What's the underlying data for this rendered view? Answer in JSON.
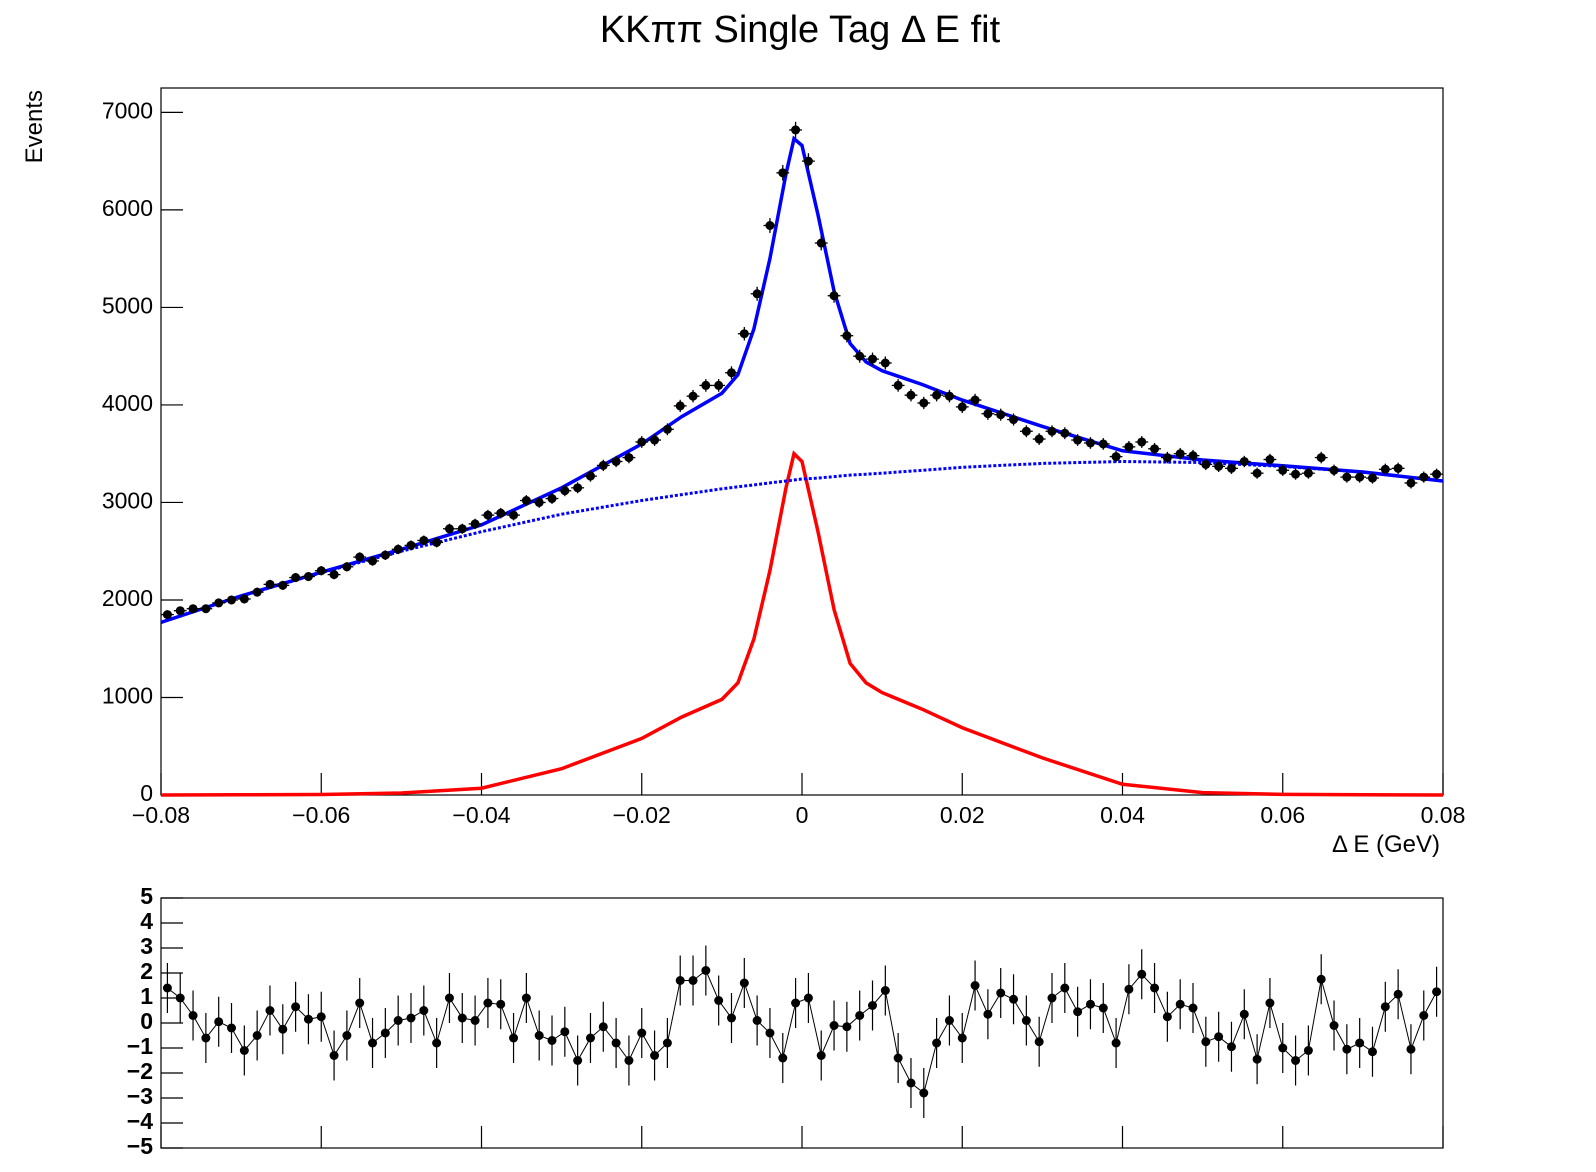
{
  "chart_data": [
    {
      "type": "scatter",
      "title": "KKππ Single Tag Δ E fit",
      "y_label": "Events",
      "x_label": "Δ E (GeV)",
      "xlim": [
        -0.08,
        0.08
      ],
      "ylim": [
        0,
        7250
      ],
      "xticks": [
        {
          "value": -0.08,
          "label": "−0.08"
        },
        {
          "value": -0.06,
          "label": "−0.06"
        },
        {
          "value": -0.04,
          "label": "−0.04"
        },
        {
          "value": -0.02,
          "label": "−0.02"
        },
        0,
        0.02,
        0.04,
        0.06,
        0.08
      ],
      "yticks": [
        0,
        1000,
        2000,
        3000,
        4000,
        5000,
        6000,
        7000
      ],
      "color": "#000000",
      "x_error": 0.0008,
      "x": [
        -0.0792,
        -0.0776,
        -0.076,
        -0.0744,
        -0.0728,
        -0.0712,
        -0.0696,
        -0.068,
        -0.0664,
        -0.0648,
        -0.0632,
        -0.0616,
        -0.06,
        -0.0584,
        -0.0568,
        -0.0552,
        -0.0536,
        -0.052,
        -0.0504,
        -0.0488,
        -0.0472,
        -0.0456,
        -0.044,
        -0.0424,
        -0.0408,
        -0.0392,
        -0.0376,
        -0.036,
        -0.0344,
        -0.0328,
        -0.0312,
        -0.0296,
        -0.028,
        -0.0264,
        -0.0248,
        -0.0232,
        -0.0216,
        -0.02,
        -0.0184,
        -0.0168,
        -0.0152,
        -0.0136,
        -0.012,
        -0.0104,
        -0.0088,
        -0.0072,
        -0.0056,
        -0.004,
        -0.0024,
        -0.0008,
        0.0008,
        0.0024,
        0.004,
        0.0056,
        0.0072,
        0.0088,
        0.0104,
        0.012,
        0.0136,
        0.0152,
        0.0168,
        0.0184,
        0.02,
        0.0216,
        0.0232,
        0.0248,
        0.0264,
        0.028,
        0.0296,
        0.0312,
        0.0328,
        0.0344,
        0.036,
        0.0376,
        0.0392,
        0.0408,
        0.0424,
        0.044,
        0.0456,
        0.0472,
        0.0488,
        0.0504,
        0.052,
        0.0536,
        0.0552,
        0.0568,
        0.0584,
        0.06,
        0.0616,
        0.0632,
        0.0648,
        0.0664,
        0.068,
        0.0696,
        0.0712,
        0.0728,
        0.0744,
        0.076,
        0.0776,
        0.0792
      ],
      "values": [
        1850,
        1890,
        1910,
        1910,
        1970,
        2000,
        2010,
        2080,
        2160,
        2150,
        2230,
        2240,
        2300,
        2260,
        2340,
        2440,
        2400,
        2460,
        2520,
        2560,
        2610,
        2590,
        2730,
        2730,
        2780,
        2870,
        2890,
        2870,
        3020,
        3000,
        3040,
        3120,
        3150,
        3270,
        3380,
        3420,
        3460,
        3620,
        3640,
        3750,
        3990,
        4090,
        4200,
        4200,
        4330,
        4730,
        5140,
        5840,
        6380,
        6820,
        6500,
        5660,
        5120,
        4710,
        4500,
        4470,
        4430,
        4200,
        4100,
        4020,
        4100,
        4090,
        3980,
        4050,
        3910,
        3900,
        3850,
        3730,
        3650,
        3730,
        3710,
        3640,
        3610,
        3600,
        3470,
        3570,
        3620,
        3550,
        3460,
        3500,
        3480,
        3390,
        3370,
        3350,
        3420,
        3300,
        3440,
        3330,
        3290,
        3300,
        3460,
        3330,
        3260,
        3260,
        3250,
        3340,
        3350,
        3200,
        3260,
        3290
      ],
      "errors": [
        43,
        43,
        44,
        44,
        44,
        45,
        45,
        46,
        46,
        46,
        47,
        47,
        48,
        48,
        48,
        49,
        49,
        50,
        50,
        51,
        51,
        51,
        52,
        52,
        53,
        54,
        54,
        54,
        55,
        55,
        55,
        56,
        56,
        57,
        58,
        58,
        59,
        60,
        60,
        61,
        63,
        64,
        65,
        65,
        66,
        69,
        72,
        76,
        80,
        83,
        81,
        75,
        72,
        69,
        67,
        67,
        67,
        65,
        64,
        63,
        64,
        64,
        63,
        64,
        63,
        62,
        62,
        61,
        60,
        61,
        61,
        60,
        60,
        60,
        59,
        60,
        60,
        60,
        59,
        59,
        59,
        58,
        58,
        58,
        58,
        57,
        59,
        58,
        57,
        57,
        59,
        58,
        57,
        57,
        57,
        58,
        58,
        57,
        57,
        57
      ],
      "curve_x": [
        -0.08,
        -0.07,
        -0.06,
        -0.05,
        -0.04,
        -0.03,
        -0.02,
        -0.015,
        -0.01,
        -0.008,
        -0.006,
        -0.004,
        -0.002,
        -0.001,
        0,
        0.002,
        0.004,
        0.006,
        0.008,
        0.01,
        0.015,
        0.02,
        0.03,
        0.04,
        0.05,
        0.06,
        0.07,
        0.08
      ],
      "series": [
        {
          "color": "#0000ff",
          "dashed": false,
          "values": [
            1770,
            2042,
            2285,
            2520,
            2770,
            3150,
            3600,
            3880,
            4120,
            4310,
            4780,
            5500,
            6370,
            6730,
            6660,
            5950,
            5165,
            4630,
            4440,
            4350,
            4210,
            4050,
            3780,
            3530,
            3435,
            3376,
            3312,
            3220
          ]
        },
        {
          "color": "#ff0000",
          "dashed": false,
          "values": [
            0,
            2,
            5,
            20,
            70,
            270,
            580,
            800,
            980,
            1150,
            1600,
            2300,
            3150,
            3500,
            3420,
            2700,
            1900,
            1350,
            1150,
            1050,
            880,
            690,
            380,
            110,
            25,
            6,
            2,
            0
          ]
        },
        {
          "color": "#0000ff",
          "dashed": true,
          "values": [
            1770,
            2040,
            2280,
            2500,
            2700,
            2880,
            3020,
            3080,
            3140,
            3160,
            3180,
            3200,
            3220,
            3230,
            3240,
            3250,
            3265,
            3280,
            3290,
            3300,
            3330,
            3360,
            3400,
            3420,
            3410,
            3370,
            3310,
            3220
          ]
        }
      ]
    },
    {
      "type": "line",
      "xlim": [
        -0.08,
        0.08
      ],
      "ylim": [
        -5,
        5
      ],
      "x_tick_labels": false,
      "bold_ticks": true,
      "color": "#000000",
      "error": 1,
      "xticks": [
        -0.08,
        -0.06,
        -0.04,
        -0.02,
        0,
        0.02,
        0.04,
        0.06,
        0.08
      ],
      "yticks": [
        {
          "value": -5,
          "label": "−5"
        },
        {
          "value": -4,
          "label": "−4"
        },
        {
          "value": -3,
          "label": "−3"
        },
        {
          "value": -2,
          "label": "−2"
        },
        {
          "value": -1,
          "label": "−1"
        },
        0,
        1,
        2,
        3,
        4,
        5
      ],
      "x": [
        -0.0792,
        -0.0776,
        -0.076,
        -0.0744,
        -0.0728,
        -0.0712,
        -0.0696,
        -0.068,
        -0.0664,
        -0.0648,
        -0.0632,
        -0.0616,
        -0.06,
        -0.0584,
        -0.0568,
        -0.0552,
        -0.0536,
        -0.052,
        -0.0504,
        -0.0488,
        -0.0472,
        -0.0456,
        -0.044,
        -0.0424,
        -0.0408,
        -0.0392,
        -0.0376,
        -0.036,
        -0.0344,
        -0.0328,
        -0.0312,
        -0.0296,
        -0.028,
        -0.0264,
        -0.0248,
        -0.0232,
        -0.0216,
        -0.02,
        -0.0184,
        -0.0168,
        -0.0152,
        -0.0136,
        -0.012,
        -0.0104,
        -0.0088,
        -0.0072,
        -0.0056,
        -0.004,
        -0.0024,
        -0.0008,
        0.0008,
        0.0024,
        0.004,
        0.0056,
        0.0072,
        0.0088,
        0.0104,
        0.012,
        0.0136,
        0.0152,
        0.0168,
        0.0184,
        0.02,
        0.0216,
        0.0232,
        0.0248,
        0.0264,
        0.028,
        0.0296,
        0.0312,
        0.0328,
        0.0344,
        0.036,
        0.0376,
        0.0392,
        0.0408,
        0.0424,
        0.044,
        0.0456,
        0.0472,
        0.0488,
        0.0504,
        0.052,
        0.0536,
        0.0552,
        0.0568,
        0.0584,
        0.06,
        0.0616,
        0.0632,
        0.0648,
        0.0664,
        0.068,
        0.0696,
        0.0712,
        0.0728,
        0.0744,
        0.076,
        0.0776,
        0.0792
      ],
      "values": [
        1.4,
        1.0,
        0.3,
        -0.6,
        0.05,
        -0.2,
        -1.1,
        -0.5,
        0.5,
        -0.25,
        0.65,
        0.15,
        0.25,
        -1.3,
        -0.5,
        0.8,
        -0.8,
        -0.4,
        0.1,
        0.2,
        0.5,
        -0.8,
        1.0,
        0.2,
        0.1,
        0.8,
        0.75,
        -0.6,
        1.0,
        -0.5,
        -0.7,
        -0.35,
        -1.5,
        -0.6,
        -0.15,
        -0.8,
        -1.5,
        -0.4,
        -1.3,
        -0.8,
        1.7,
        1.7,
        2.1,
        0.9,
        0.2,
        1.6,
        0.1,
        -0.4,
        -1.4,
        0.8,
        1.0,
        -1.3,
        -0.1,
        -0.15,
        0.3,
        0.7,
        1.3,
        -1.4,
        -2.4,
        -2.8,
        -0.8,
        0.1,
        -0.6,
        1.5,
        0.35,
        1.2,
        0.95,
        0.1,
        -0.75,
        1.0,
        1.4,
        0.45,
        0.75,
        0.6,
        -0.8,
        1.35,
        1.95,
        1.4,
        0.25,
        0.75,
        0.6,
        -0.75,
        -0.55,
        -0.95,
        0.35,
        -1.45,
        0.8,
        -1.0,
        -1.5,
        -1.1,
        1.75,
        -0.1,
        -1.05,
        -0.8,
        -1.15,
        0.65,
        1.15,
        -1.05,
        0.3,
        1.25
      ]
    }
  ]
}
